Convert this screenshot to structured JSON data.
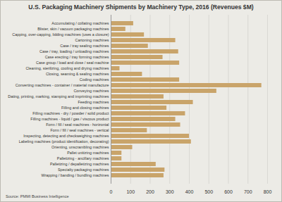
{
  "chart_data": {
    "type": "bar",
    "orientation": "horizontal",
    "title": "U.S. Packaging Machinery Shipments by Machinery Type, 2016 (Revenues $M)",
    "source": "Source: PMMI Business Intelligence",
    "categories": [
      "Accumulating / collating machines",
      "Blister, skin / vacuum packaging machines",
      "Capping, over-capping, lidding machines (uses a closure)",
      "Cartoning machines",
      "Case / tray sealing machines",
      "Case / tray, loading / unloading machines",
      "Case erecting / tray forming machines",
      "Case group / load and close / seal machine",
      "Cleaning, sterilizing, cooling and drying machines",
      "Closing, seaming & sealing machines",
      "Coding machines",
      "Converting machines - container / material manufacture",
      "Conveying machines",
      "Dating, printing, marking, stamping and imprinting machines",
      "Feeding machines",
      "Filling and closing machines",
      "Filling machines - dry / powder / solid product",
      "Filling machines - liquid / gas / viscous product",
      "Form / fill / seal machines - horizontal",
      "Form / fill / seal machines - vertical",
      "Inspecting, detecting and checkweighing machines",
      "Labeling machines (product identification, decorating)",
      "Orienting, unscrambling machines",
      "Pallet unitizing machines",
      "Palletizing - ancillary machines",
      "Palletizing / depalletizing machines",
      "Specialty packaging machines",
      "Wrapping / banding / bundling machines"
    ],
    "values": [
      115,
      75,
      170,
      330,
      190,
      345,
      265,
      350,
      45,
      160,
      350,
      770,
      540,
      270,
      420,
      285,
      380,
      330,
      355,
      185,
      400,
      410,
      110,
      55,
      55,
      230,
      275,
      270
    ],
    "color": "#c9a46a",
    "xlim": [
      0,
      800
    ],
    "xticks": [
      0,
      100,
      200,
      300,
      400,
      500,
      600,
      700,
      800
    ],
    "grid": true
  }
}
